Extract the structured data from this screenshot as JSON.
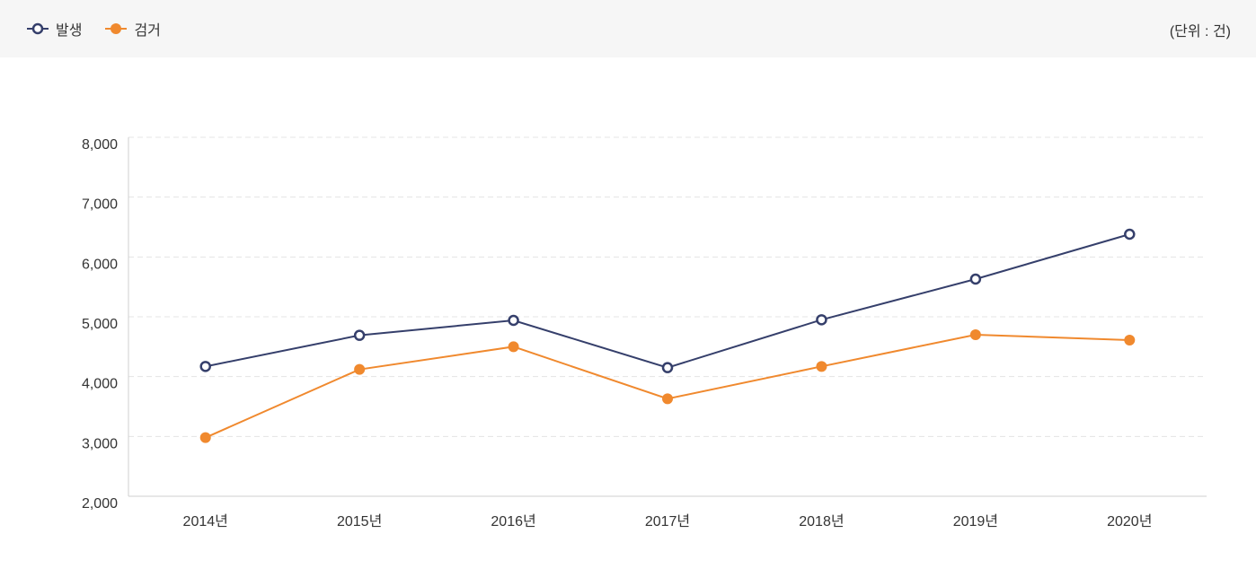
{
  "legend": {
    "items": [
      {
        "label": "발생",
        "color": "#353f6b",
        "marker": "hollow-circle"
      },
      {
        "label": "검거",
        "color": "#f0892e",
        "marker": "filled-circle"
      }
    ]
  },
  "unit_label": "(단위 : 건)",
  "chart_data": {
    "type": "line",
    "title": "",
    "xlabel": "",
    "ylabel": "",
    "categories": [
      "2014년",
      "2015년",
      "2016년",
      "2017년",
      "2018년",
      "2019년",
      "2020년"
    ],
    "ylim": [
      2000,
      8000
    ],
    "yticks": [
      2000,
      3000,
      4000,
      5000,
      6000,
      7000,
      8000
    ],
    "ytick_labels": [
      "2,000",
      "3,000",
      "4,000",
      "5,000",
      "6,000",
      "7,000",
      "8,000"
    ],
    "grid": "horizontal-dashed",
    "legend_position": "top-left",
    "series": [
      {
        "name": "발생",
        "color": "#353f6b",
        "marker": "hollow-circle",
        "values": [
          4170,
          4690,
          4940,
          4150,
          4950,
          5630,
          6380
        ]
      },
      {
        "name": "검거",
        "color": "#f0892e",
        "marker": "filled-circle",
        "values": [
          2980,
          4120,
          4500,
          3630,
          4170,
          4700,
          4610
        ]
      }
    ]
  }
}
